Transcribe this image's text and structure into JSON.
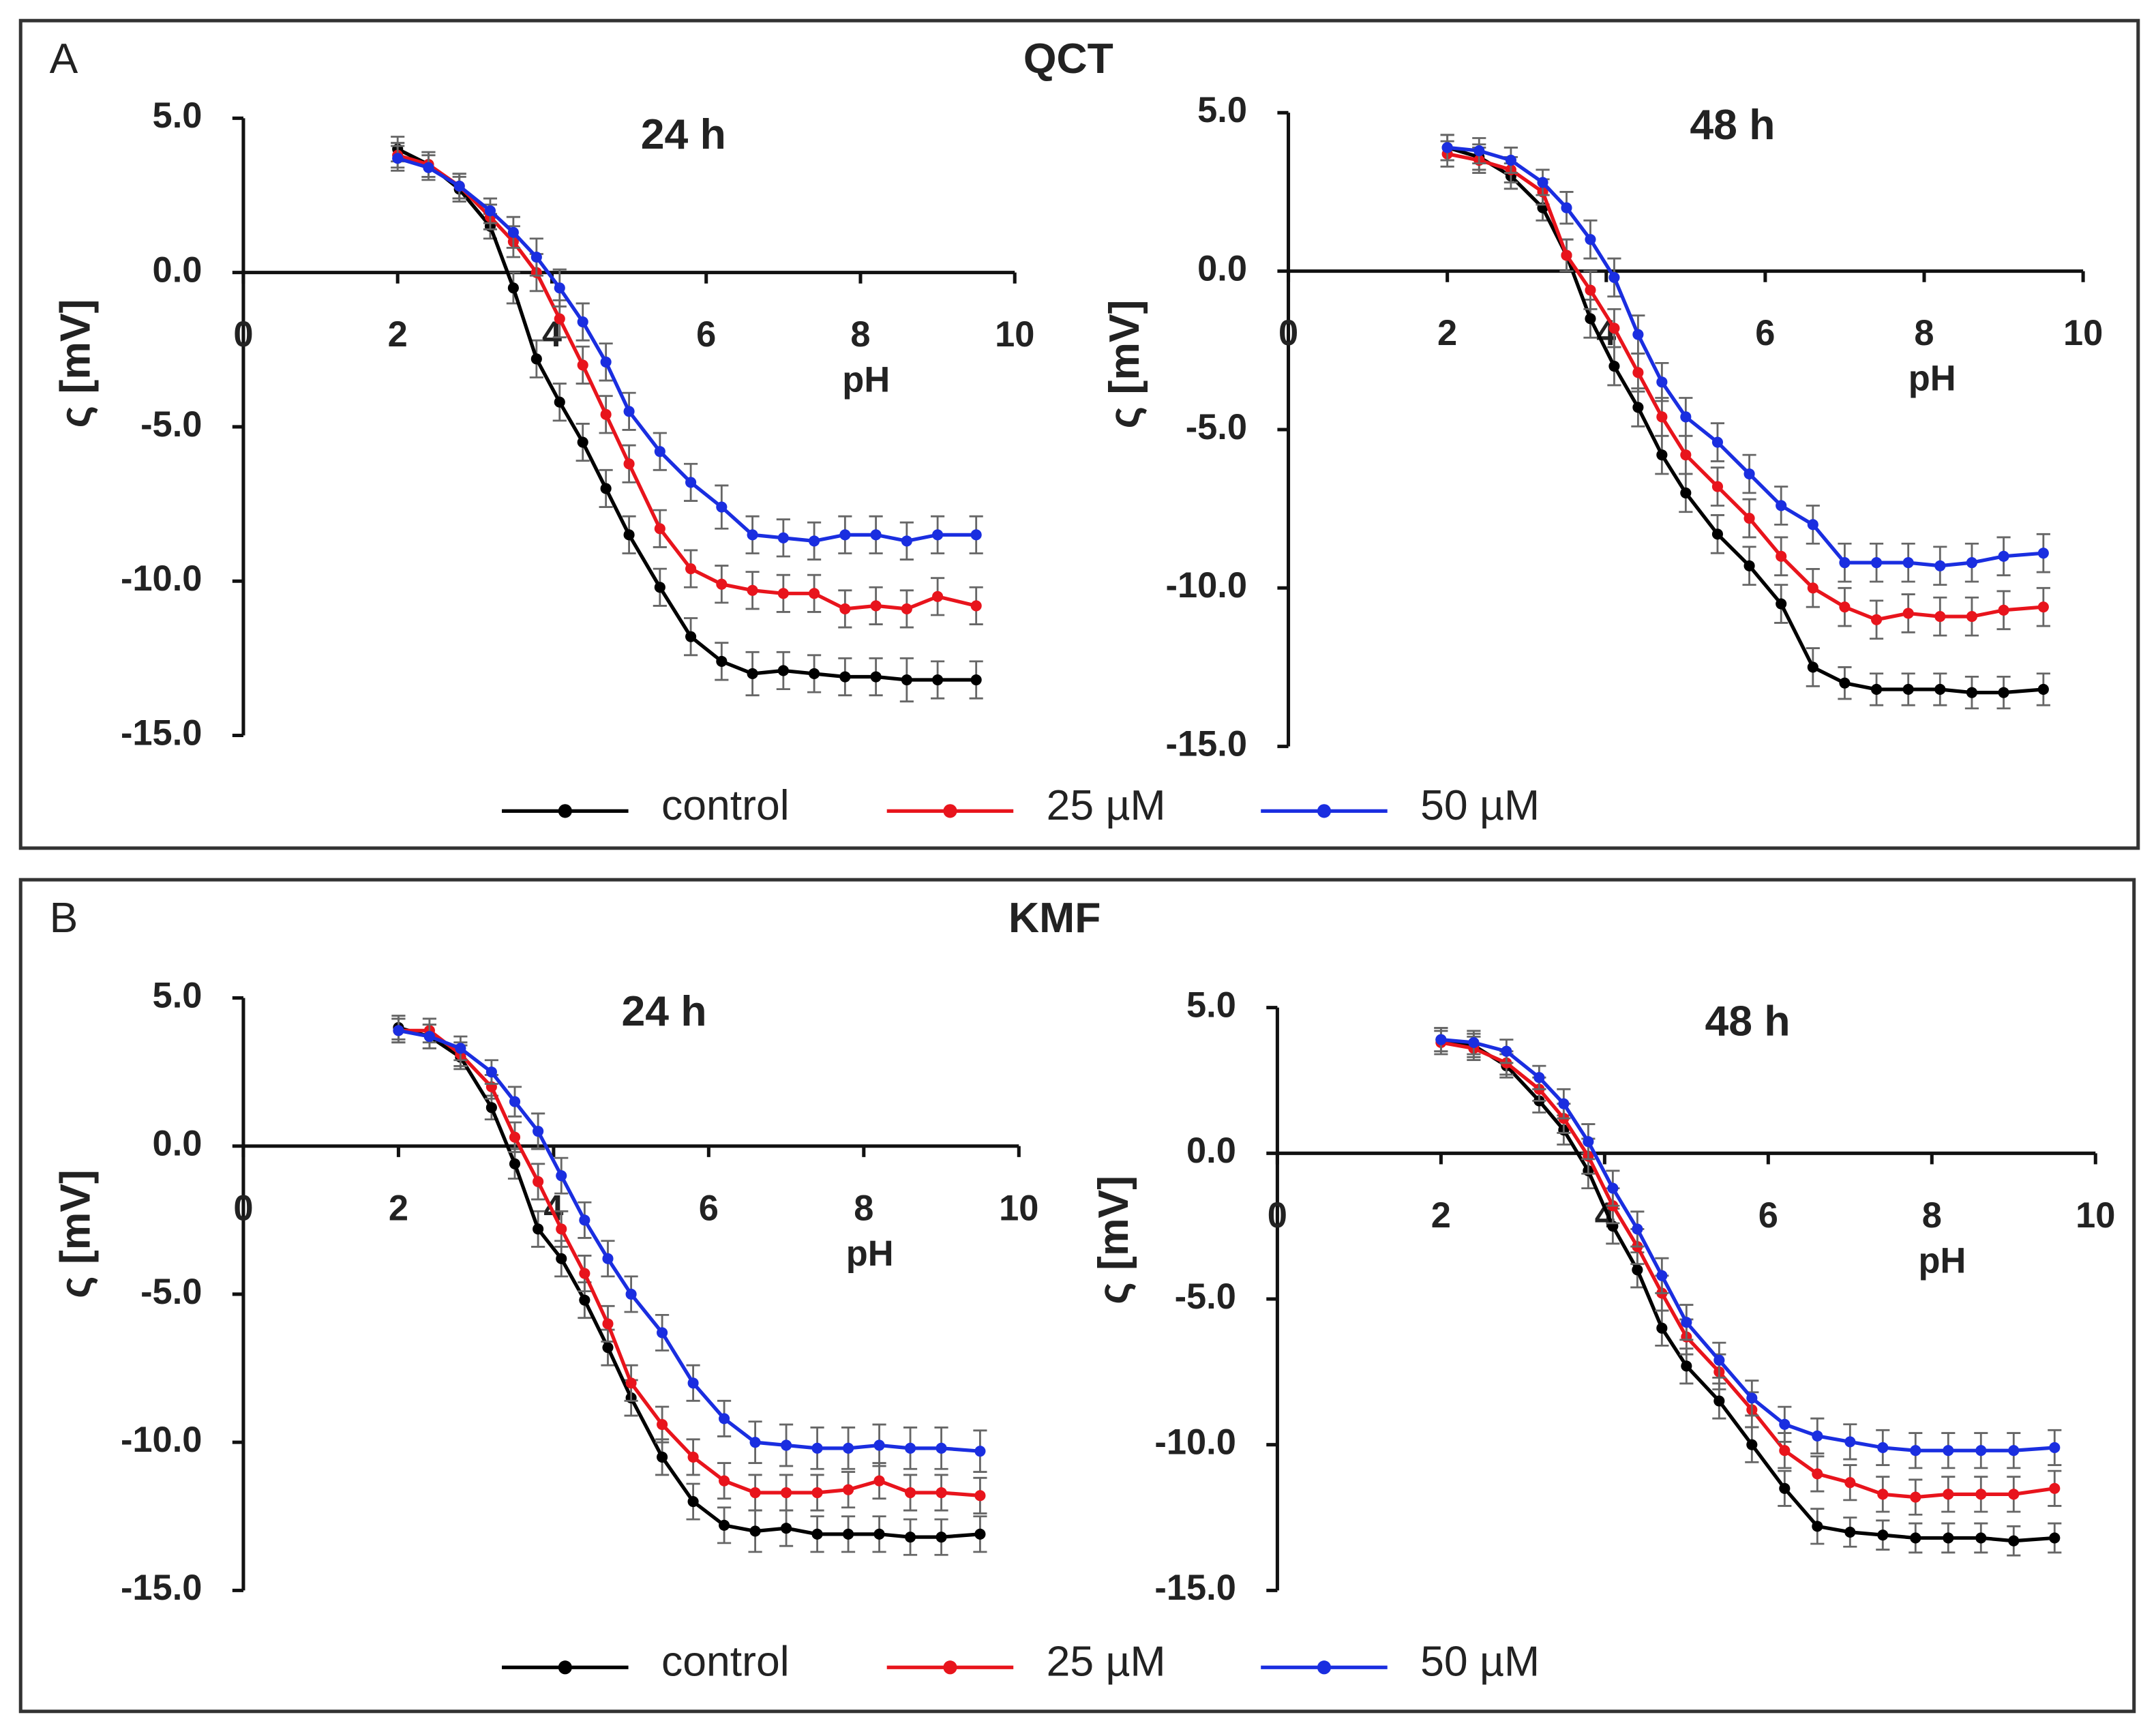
{
  "panels": [
    {
      "label": "A",
      "title": "QCT"
    },
    {
      "label": "B",
      "title": "KMF"
    }
  ],
  "chart_data": [
    {
      "type": "line",
      "title": "24 h",
      "xlabel": "pH",
      "ylabel": "ς [mV]",
      "xlim": [
        0,
        10
      ],
      "ylim": [
        -15,
        5
      ],
      "xticks": [
        0,
        2,
        4,
        6,
        8,
        10
      ],
      "yticks": [
        {
          "value": 5,
          "label": "5.0"
        },
        {
          "value": 0,
          "label": "0.0"
        },
        {
          "value": -5,
          "label": "-5.0"
        },
        {
          "value": -10,
          "label": "-10.0"
        },
        {
          "value": -15,
          "label": "-15.0"
        }
      ],
      "x": [
        2.0,
        2.4,
        2.8,
        3.2,
        3.5,
        3.8,
        4.1,
        4.4,
        4.7,
        5.0,
        5.4,
        5.8,
        6.2,
        6.6,
        7.0,
        7.4,
        7.8,
        8.2,
        8.6,
        9.0,
        9.5
      ],
      "series": [
        {
          "name": "control",
          "color": "#000000",
          "values": [
            4.0,
            3.5,
            2.7,
            1.5,
            -0.5,
            -2.8,
            -4.2,
            -5.5,
            -7.0,
            -8.5,
            -10.2,
            -11.8,
            -12.6,
            -13.0,
            -12.9,
            -13.0,
            -13.1,
            -13.1,
            -13.2,
            -13.2,
            -13.2
          ],
          "errors": [
            0.4,
            0.4,
            0.4,
            0.4,
            0.5,
            0.6,
            0.6,
            0.6,
            0.6,
            0.6,
            0.6,
            0.6,
            0.6,
            0.7,
            0.6,
            0.6,
            0.6,
            0.6,
            0.7,
            0.6,
            0.6
          ]
        },
        {
          "name": "25 µM",
          "color": "#e8141c",
          "values": [
            3.8,
            3.5,
            2.8,
            1.8,
            1.0,
            0.0,
            -1.5,
            -3.0,
            -4.6,
            -6.2,
            -8.3,
            -9.6,
            -10.1,
            -10.3,
            -10.4,
            -10.4,
            -10.9,
            -10.8,
            -10.9,
            -10.5,
            -10.8
          ],
          "errors": [
            0.4,
            0.4,
            0.4,
            0.4,
            0.5,
            0.6,
            0.6,
            0.6,
            0.6,
            0.6,
            0.6,
            0.6,
            0.6,
            0.6,
            0.6,
            0.6,
            0.6,
            0.6,
            0.6,
            0.6,
            0.6
          ]
        },
        {
          "name": "50 µM",
          "color": "#1a2ee0",
          "values": [
            3.7,
            3.4,
            2.8,
            2.0,
            1.3,
            0.5,
            -0.5,
            -1.6,
            -2.9,
            -4.5,
            -5.8,
            -6.8,
            -7.6,
            -8.5,
            -8.6,
            -8.7,
            -8.5,
            -8.5,
            -8.7,
            -8.5,
            -8.5
          ],
          "errors": [
            0.4,
            0.4,
            0.4,
            0.4,
            0.5,
            0.6,
            0.6,
            0.6,
            0.6,
            0.6,
            0.6,
            0.6,
            0.7,
            0.6,
            0.6,
            0.6,
            0.6,
            0.6,
            0.6,
            0.6,
            0.6
          ]
        }
      ]
    },
    {
      "type": "line",
      "title": "48 h",
      "xlabel": "pH",
      "ylabel": "ς [mV]",
      "xlim": [
        0,
        10
      ],
      "ylim": [
        -15,
        5
      ],
      "xticks": [
        0,
        2,
        4,
        6,
        8,
        10
      ],
      "yticks": [
        {
          "value": 5,
          "label": "5.0"
        },
        {
          "value": 0,
          "label": "0.0"
        },
        {
          "value": -5,
          "label": "-5.0"
        },
        {
          "value": -10,
          "label": "-10.0"
        },
        {
          "value": -15,
          "label": "-15.0"
        }
      ],
      "x": [
        2.0,
        2.4,
        2.8,
        3.2,
        3.5,
        3.8,
        4.1,
        4.4,
        4.7,
        5.0,
        5.4,
        5.8,
        6.2,
        6.6,
        7.0,
        7.4,
        7.8,
        8.2,
        8.6,
        9.0,
        9.5
      ],
      "series": [
        {
          "name": "control",
          "color": "#000000",
          "values": [
            3.9,
            3.6,
            3.0,
            2.0,
            0.5,
            -1.5,
            -3.0,
            -4.3,
            -5.8,
            -7.0,
            -8.3,
            -9.3,
            -10.5,
            -12.5,
            -13.0,
            -13.2,
            -13.2,
            -13.2,
            -13.3,
            -13.3,
            -13.2
          ],
          "errors": [
            0.4,
            0.4,
            0.4,
            0.4,
            0.5,
            0.6,
            0.6,
            0.6,
            0.6,
            0.6,
            0.6,
            0.6,
            0.6,
            0.6,
            0.5,
            0.5,
            0.5,
            0.5,
            0.5,
            0.5,
            0.5
          ]
        },
        {
          "name": "25 µM",
          "color": "#e8141c",
          "values": [
            3.7,
            3.5,
            3.2,
            2.5,
            0.5,
            -0.6,
            -1.8,
            -3.2,
            -4.6,
            -5.8,
            -6.8,
            -7.8,
            -9.0,
            -10.0,
            -10.6,
            -11.0,
            -10.8,
            -10.9,
            -10.9,
            -10.7,
            -10.6
          ],
          "errors": [
            0.4,
            0.4,
            0.4,
            0.4,
            0.5,
            0.6,
            0.6,
            0.6,
            0.6,
            0.6,
            0.6,
            0.6,
            0.6,
            0.6,
            0.6,
            0.6,
            0.6,
            0.6,
            0.6,
            0.6,
            0.6
          ]
        },
        {
          "name": "50 µM",
          "color": "#1a2ee0",
          "values": [
            3.9,
            3.8,
            3.5,
            2.8,
            2.0,
            1.0,
            -0.2,
            -2.0,
            -3.5,
            -4.6,
            -5.4,
            -6.4,
            -7.4,
            -8.0,
            -9.2,
            -9.2,
            -9.2,
            -9.3,
            -9.2,
            -9.0,
            -8.9
          ],
          "errors": [
            0.4,
            0.4,
            0.4,
            0.4,
            0.5,
            0.6,
            0.6,
            0.6,
            0.6,
            0.6,
            0.6,
            0.6,
            0.6,
            0.6,
            0.6,
            0.6,
            0.6,
            0.6,
            0.6,
            0.6,
            0.6
          ]
        }
      ]
    },
    {
      "type": "line",
      "title": "24 h",
      "xlabel": "pH",
      "ylabel": "ς [mV]",
      "xlim": [
        0,
        10
      ],
      "ylim": [
        -15,
        5
      ],
      "xticks": [
        0,
        2,
        4,
        6,
        8,
        10
      ],
      "yticks": [
        {
          "value": 5,
          "label": "5.0"
        },
        {
          "value": 0,
          "label": "0.0"
        },
        {
          "value": -5,
          "label": "-5.0"
        },
        {
          "value": -10,
          "label": "-10.0"
        },
        {
          "value": -15,
          "label": "-15.0"
        }
      ],
      "x": [
        2.0,
        2.4,
        2.8,
        3.2,
        3.5,
        3.8,
        4.1,
        4.4,
        4.7,
        5.0,
        5.4,
        5.8,
        6.2,
        6.6,
        7.0,
        7.4,
        7.8,
        8.2,
        8.6,
        9.0,
        9.5
      ],
      "series": [
        {
          "name": "control",
          "color": "#000000",
          "values": [
            4.0,
            3.7,
            3.0,
            1.3,
            -0.6,
            -2.8,
            -3.8,
            -5.2,
            -6.8,
            -8.5,
            -10.5,
            -12.0,
            -12.8,
            -13.0,
            -12.9,
            -13.1,
            -13.1,
            -13.1,
            -13.2,
            -13.2,
            -13.1
          ],
          "errors": [
            0.4,
            0.4,
            0.4,
            0.4,
            0.5,
            0.6,
            0.6,
            0.6,
            0.6,
            0.6,
            0.6,
            0.6,
            0.6,
            0.7,
            0.6,
            0.6,
            0.6,
            0.6,
            0.6,
            0.6,
            0.6
          ]
        },
        {
          "name": "25 µM",
          "color": "#e8141c",
          "values": [
            3.9,
            3.9,
            3.1,
            2.0,
            0.3,
            -1.2,
            -2.8,
            -4.3,
            -6.0,
            -8.0,
            -9.4,
            -10.5,
            -11.3,
            -11.7,
            -11.7,
            -11.7,
            -11.6,
            -11.3,
            -11.7,
            -11.7,
            -11.8
          ],
          "errors": [
            0.4,
            0.4,
            0.4,
            0.4,
            0.5,
            0.6,
            0.6,
            0.6,
            0.6,
            0.6,
            0.6,
            0.6,
            0.6,
            0.6,
            0.6,
            0.6,
            0.6,
            0.6,
            0.6,
            0.6,
            0.6
          ]
        },
        {
          "name": "50 µM",
          "color": "#1a2ee0",
          "values": [
            3.9,
            3.7,
            3.3,
            2.5,
            1.5,
            0.5,
            -1.0,
            -2.5,
            -3.8,
            -5.0,
            -6.3,
            -8.0,
            -9.2,
            -10.0,
            -10.1,
            -10.2,
            -10.2,
            -10.1,
            -10.2,
            -10.2,
            -10.3
          ],
          "errors": [
            0.4,
            0.4,
            0.4,
            0.4,
            0.5,
            0.6,
            0.6,
            0.6,
            0.6,
            0.6,
            0.6,
            0.6,
            0.6,
            0.7,
            0.7,
            0.7,
            0.7,
            0.7,
            0.7,
            0.7,
            0.7
          ]
        }
      ]
    },
    {
      "type": "line",
      "title": "48 h",
      "xlabel": "pH",
      "ylabel": "ς [mV]",
      "xlim": [
        0,
        10
      ],
      "ylim": [
        -15,
        5
      ],
      "xticks": [
        0,
        2,
        4,
        6,
        8,
        10
      ],
      "yticks": [
        {
          "value": 5,
          "label": "5.0"
        },
        {
          "value": 0,
          "label": "0.0"
        },
        {
          "value": -5,
          "label": "-5.0"
        },
        {
          "value": -10,
          "label": "-10.0"
        },
        {
          "value": -15,
          "label": "-15.0"
        }
      ],
      "x": [
        2.0,
        2.4,
        2.8,
        3.2,
        3.5,
        3.8,
        4.1,
        4.4,
        4.7,
        5.0,
        5.4,
        5.8,
        6.2,
        6.6,
        7.0,
        7.4,
        7.8,
        8.2,
        8.6,
        9.0,
        9.5
      ],
      "series": [
        {
          "name": "control",
          "color": "#000000",
          "values": [
            3.9,
            3.7,
            3.0,
            1.8,
            0.8,
            -0.6,
            -2.5,
            -4.0,
            -6.0,
            -7.3,
            -8.5,
            -10.0,
            -11.5,
            -12.8,
            -13.0,
            -13.1,
            -13.2,
            -13.2,
            -13.2,
            -13.3,
            -13.2
          ],
          "errors": [
            0.4,
            0.4,
            0.4,
            0.4,
            0.5,
            0.6,
            0.6,
            0.6,
            0.6,
            0.6,
            0.6,
            0.6,
            0.6,
            0.6,
            0.5,
            0.5,
            0.5,
            0.5,
            0.5,
            0.5,
            0.5
          ]
        },
        {
          "name": "25 µM",
          "color": "#e8141c",
          "values": [
            3.8,
            3.6,
            3.1,
            2.2,
            1.2,
            -0.1,
            -1.8,
            -3.2,
            -4.8,
            -6.3,
            -7.5,
            -8.8,
            -10.2,
            -11.0,
            -11.3,
            -11.7,
            -11.8,
            -11.7,
            -11.7,
            -11.7,
            -11.5
          ],
          "errors": [
            0.4,
            0.4,
            0.4,
            0.4,
            0.5,
            0.6,
            0.6,
            0.6,
            0.6,
            0.6,
            0.6,
            0.6,
            0.6,
            0.6,
            0.6,
            0.6,
            0.6,
            0.6,
            0.6,
            0.6,
            0.6
          ]
        },
        {
          "name": "50 µM",
          "color": "#1a2ee0",
          "values": [
            3.9,
            3.8,
            3.5,
            2.6,
            1.7,
            0.4,
            -1.2,
            -2.6,
            -4.2,
            -5.8,
            -7.1,
            -8.4,
            -9.3,
            -9.7,
            -9.9,
            -10.1,
            -10.2,
            -10.2,
            -10.2,
            -10.2,
            -10.1
          ],
          "errors": [
            0.4,
            0.4,
            0.4,
            0.4,
            0.5,
            0.6,
            0.6,
            0.6,
            0.6,
            0.6,
            0.6,
            0.6,
            0.6,
            0.6,
            0.6,
            0.6,
            0.6,
            0.6,
            0.6,
            0.6,
            0.6
          ]
        }
      ]
    }
  ]
}
